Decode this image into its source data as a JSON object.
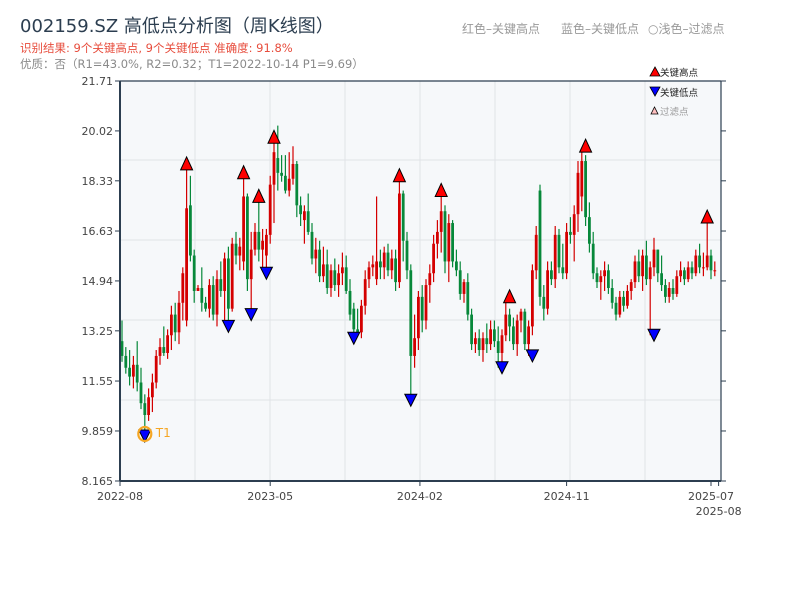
{
  "header": {
    "title": "002159.SZ 高低点分析图（周K线图）",
    "result_line": "识别结果: 9个关键高点, 9个关键低点  准确度: 91.8%",
    "quality_line": "优质：否（R1=43.0%, R2=0.32；T1=2022-10-14 P1=9.69）",
    "color_note_red": "红色–关键高点",
    "color_note_blue": "蓝色–关键低点",
    "color_note_light": "○浅色–过滤点"
  },
  "chart_data": {
    "type": "candlestick",
    "title": "002159.SZ 高低点分析图（周K线图）",
    "xlabel": "",
    "ylabel": "",
    "ylim": [
      8.165,
      21.71
    ],
    "yticks": [
      "21.71",
      "20.02",
      "18.33",
      "16.63",
      "14.94",
      "13.25",
      "11.55",
      "9.859",
      "8.165"
    ],
    "ytick_values": [
      21.71,
      20.02,
      18.33,
      16.63,
      14.94,
      13.25,
      11.55,
      9.859,
      8.165
    ],
    "xticks": [
      {
        "label": "2022-08",
        "week": 0
      },
      {
        "label": "2023-05",
        "week": 39
      },
      {
        "label": "2024-02",
        "week": 78.4
      },
      {
        "label": "2024-11",
        "week": 117
      },
      {
        "label": "2025-07",
        "week": 155
      },
      {
        "label": "2025-08",
        "week": 157
      }
    ],
    "grid": true,
    "legend": {
      "placement": "top-right",
      "items": [
        {
          "label": "关键高点",
          "color": "#ff0000"
        },
        {
          "label": "关键低点",
          "color": "#0000ff"
        },
        {
          "label": "过滤点",
          "color": "#ffc0c0"
        }
      ]
    },
    "up_color": "#d40000",
    "down_color": "#07883a",
    "candles_ohlc": [
      [
        12.9,
        13.6,
        12.2,
        12.4
      ],
      [
        12.4,
        12.7,
        11.8,
        12.0
      ],
      [
        12.0,
        12.6,
        11.4,
        11.7
      ],
      [
        11.7,
        12.4,
        11.3,
        12.1
      ],
      [
        12.1,
        12.9,
        11.2,
        11.5
      ],
      [
        11.5,
        12.0,
        10.6,
        10.8
      ],
      [
        10.8,
        11.1,
        9.69,
        10.4
      ],
      [
        10.4,
        11.3,
        10.2,
        11.0
      ],
      [
        11.0,
        11.8,
        10.5,
        11.5
      ],
      [
        11.5,
        12.6,
        11.3,
        12.4
      ],
      [
        12.4,
        13.0,
        12.1,
        12.7
      ],
      [
        12.7,
        13.4,
        12.4,
        12.5
      ],
      [
        12.5,
        13.3,
        12.3,
        13.1
      ],
      [
        13.1,
        14.1,
        12.6,
        13.8
      ],
      [
        13.8,
        14.2,
        12.9,
        13.2
      ],
      [
        13.2,
        14.6,
        12.8,
        14.2
      ],
      [
        14.2,
        15.4,
        13.6,
        15.2
      ],
      [
        13.6,
        18.7,
        13.4,
        17.4
      ],
      [
        17.5,
        18.5,
        15.6,
        15.8
      ],
      [
        15.8,
        16.0,
        14.2,
        14.6
      ],
      [
        14.6,
        14.8,
        14.6,
        14.7
      ],
      [
        14.7,
        15.4,
        13.9,
        14.2
      ],
      [
        14.2,
        14.4,
        13.9,
        14.0
      ],
      [
        14.0,
        15.0,
        13.7,
        14.8
      ],
      [
        14.8,
        15.1,
        13.6,
        13.8
      ],
      [
        13.8,
        15.3,
        13.4,
        15.0
      ],
      [
        15.0,
        15.6,
        14.4,
        14.6
      ],
      [
        14.6,
        15.9,
        13.6,
        15.7
      ],
      [
        15.7,
        16.1,
        13.4,
        14.0
      ],
      [
        14.0,
        16.4,
        13.9,
        16.2
      ],
      [
        16.2,
        16.6,
        15.5,
        15.8
      ],
      [
        15.8,
        16.4,
        15.3,
        16.1
      ],
      [
        15.6,
        18.4,
        15.3,
        17.8
      ],
      [
        17.8,
        17.9,
        14.6,
        15.0
      ],
      [
        15.0,
        16.6,
        13.8,
        16.0
      ],
      [
        16.0,
        16.9,
        15.8,
        16.6
      ],
      [
        16.6,
        17.6,
        15.6,
        16.0
      ],
      [
        16.0,
        16.7,
        15.4,
        16.3
      ],
      [
        15.8,
        16.7,
        15.2,
        16.5
      ],
      [
        16.5,
        18.5,
        16.2,
        18.2
      ],
      [
        18.2,
        19.6,
        16.9,
        19.3
      ],
      [
        19.1,
        20.2,
        18.0,
        18.6
      ],
      [
        18.6,
        19.2,
        18.3,
        18.5
      ],
      [
        18.5,
        19.2,
        17.9,
        18.0
      ],
      [
        18.0,
        19.3,
        17.8,
        18.4
      ],
      [
        18.4,
        19.5,
        18.2,
        18.9
      ],
      [
        18.9,
        19.0,
        17.1,
        17.5
      ],
      [
        17.5,
        17.8,
        16.8,
        17.2
      ],
      [
        17.0,
        17.5,
        16.2,
        17.3
      ],
      [
        17.3,
        17.9,
        16.5,
        16.6
      ],
      [
        16.6,
        16.9,
        15.5,
        15.7
      ],
      [
        15.7,
        16.4,
        15.2,
        16.0
      ],
      [
        16.0,
        16.3,
        14.9,
        15.1
      ],
      [
        15.1,
        16.1,
        14.9,
        15.5
      ],
      [
        15.5,
        16.0,
        14.5,
        14.7
      ],
      [
        14.7,
        15.5,
        14.4,
        15.3
      ],
      [
        15.3,
        15.7,
        14.6,
        14.8
      ],
      [
        14.8,
        15.5,
        14.4,
        15.2
      ],
      [
        15.2,
        15.9,
        14.8,
        15.4
      ],
      [
        15.4,
        15.8,
        14.5,
        14.6
      ],
      [
        14.6,
        15.0,
        13.6,
        13.8
      ],
      [
        14.0,
        14.2,
        13.0,
        13.3
      ],
      [
        13.3,
        14.0,
        13.1,
        13.2
      ],
      [
        13.2,
        14.3,
        13.0,
        14.1
      ],
      [
        14.1,
        15.3,
        13.8,
        15.0
      ],
      [
        15.0,
        15.6,
        14.7,
        15.4
      ],
      [
        15.4,
        15.8,
        15.1,
        15.5
      ],
      [
        15.0,
        17.8,
        14.8,
        15.6
      ],
      [
        15.6,
        16.0,
        15.0,
        15.4
      ],
      [
        15.4,
        16.1,
        15.0,
        15.9
      ],
      [
        15.9,
        16.2,
        15.1,
        15.3
      ],
      [
        15.3,
        16.0,
        15.0,
        15.7
      ],
      [
        15.7,
        16.0,
        14.6,
        14.9
      ],
      [
        14.9,
        18.3,
        14.7,
        17.9
      ],
      [
        17.9,
        18.0,
        15.6,
        16.3
      ],
      [
        16.3,
        16.6,
        15.0,
        15.3
      ],
      [
        15.3,
        15.5,
        10.9,
        12.4
      ],
      [
        12.4,
        13.8,
        12.0,
        13.0
      ],
      [
        13.0,
        14.6,
        12.6,
        14.4
      ],
      [
        14.4,
        14.8,
        13.2,
        13.6
      ],
      [
        13.6,
        15.0,
        13.3,
        14.8
      ],
      [
        14.8,
        15.5,
        14.2,
        15.2
      ],
      [
        15.2,
        16.5,
        14.9,
        16.2
      ],
      [
        16.2,
        17.0,
        15.7,
        16.6
      ],
      [
        16.6,
        17.8,
        15.9,
        17.3
      ],
      [
        17.3,
        17.5,
        15.2,
        15.6
      ],
      [
        15.6,
        17.2,
        14.9,
        16.9
      ],
      [
        16.9,
        17.0,
        15.4,
        15.6
      ],
      [
        15.6,
        16.0,
        15.1,
        15.3
      ],
      [
        15.3,
        15.6,
        14.3,
        14.5
      ],
      [
        14.5,
        15.0,
        14.2,
        14.9
      ],
      [
        14.9,
        15.2,
        13.6,
        13.8
      ],
      [
        13.8,
        14.0,
        12.6,
        12.8
      ],
      [
        12.8,
        13.2,
        12.5,
        13.0
      ],
      [
        13.0,
        13.3,
        12.4,
        12.6
      ],
      [
        12.6,
        13.2,
        12.2,
        13.0
      ],
      [
        13.0,
        13.5,
        12.5,
        12.8
      ],
      [
        12.8,
        13.6,
        12.6,
        13.3
      ],
      [
        13.3,
        13.6,
        12.7,
        12.9
      ],
      [
        12.9,
        13.4,
        12.0,
        12.5
      ],
      [
        12.5,
        13.3,
        12.2,
        13.1
      ],
      [
        13.1,
        14.2,
        12.9,
        13.8
      ],
      [
        13.8,
        14.0,
        12.9,
        13.4
      ],
      [
        13.4,
        13.7,
        12.6,
        12.8
      ],
      [
        12.8,
        13.8,
        12.4,
        13.6
      ],
      [
        13.6,
        14.0,
        13.2,
        13.9
      ],
      [
        13.9,
        14.0,
        12.6,
        12.8
      ],
      [
        12.8,
        13.6,
        12.4,
        13.4
      ],
      [
        13.4,
        15.5,
        13.1,
        15.3
      ],
      [
        15.3,
        16.8,
        15.0,
        16.5
      ],
      [
        18.0,
        18.2,
        14.1,
        14.4
      ],
      [
        14.4,
        14.8,
        13.6,
        14.0
      ],
      [
        14.0,
        15.6,
        13.8,
        15.3
      ],
      [
        15.3,
        15.6,
        14.8,
        15.0
      ],
      [
        15.0,
        16.8,
        14.7,
        16.5
      ],
      [
        16.5,
        16.7,
        15.2,
        15.4
      ],
      [
        15.4,
        16.2,
        15.0,
        15.2
      ],
      [
        15.2,
        16.9,
        15.0,
        16.6
      ],
      [
        16.6,
        17.1,
        16.2,
        16.5
      ],
      [
        16.5,
        17.5,
        15.6,
        17.2
      ],
      [
        17.2,
        19.0,
        16.6,
        18.6
      ],
      [
        17.8,
        19.3,
        17.3,
        19.0
      ],
      [
        19.0,
        19.2,
        16.8,
        17.1
      ],
      [
        17.1,
        17.6,
        15.9,
        16.2
      ],
      [
        16.2,
        16.6,
        15.0,
        15.2
      ],
      [
        15.2,
        15.4,
        14.7,
        14.9
      ],
      [
        14.9,
        15.3,
        14.3,
        15.1
      ],
      [
        15.1,
        15.6,
        14.6,
        15.3
      ],
      [
        15.3,
        15.5,
        14.5,
        14.7
      ],
      [
        14.7,
        15.0,
        14.0,
        14.2
      ],
      [
        14.2,
        14.4,
        13.6,
        13.8
      ],
      [
        13.8,
        14.6,
        13.7,
        14.4
      ],
      [
        14.4,
        14.6,
        13.9,
        14.1
      ],
      [
        14.1,
        14.8,
        14.0,
        14.6
      ],
      [
        14.6,
        15.0,
        14.3,
        14.9
      ],
      [
        14.9,
        15.8,
        14.7,
        15.6
      ],
      [
        15.6,
        16.0,
        14.9,
        15.1
      ],
      [
        15.1,
        16.0,
        14.6,
        15.8
      ],
      [
        15.8,
        16.3,
        14.8,
        15.0
      ],
      [
        15.0,
        15.6,
        13.1,
        15.4
      ],
      [
        15.4,
        16.4,
        15.1,
        16.0
      ],
      [
        16.0,
        16.0,
        14.9,
        15.2
      ],
      [
        15.2,
        15.8,
        14.6,
        14.8
      ],
      [
        14.8,
        15.0,
        14.2,
        14.4
      ],
      [
        14.4,
        14.9,
        14.2,
        14.7
      ],
      [
        14.7,
        15.0,
        14.3,
        14.5
      ],
      [
        14.5,
        15.3,
        14.4,
        15.1
      ],
      [
        15.1,
        15.6,
        14.9,
        15.3
      ],
      [
        15.3,
        15.4,
        14.8,
        15.0
      ],
      [
        15.0,
        15.6,
        14.9,
        15.4
      ],
      [
        15.4,
        15.6,
        15.0,
        15.2
      ],
      [
        15.2,
        16.0,
        15.1,
        15.8
      ],
      [
        15.8,
        16.2,
        15.2,
        15.4
      ],
      [
        15.4,
        15.9,
        15.1,
        15.4
      ],
      [
        15.4,
        16.9,
        15.3,
        15.8
      ],
      [
        15.8,
        16.0,
        15.0,
        15.3
      ],
      [
        15.3,
        15.6,
        15.1,
        15.3
      ]
    ],
    "key_highs": [
      {
        "week": 17,
        "price": 18.7
      },
      {
        "week": 32,
        "price": 18.4
      },
      {
        "week": 36,
        "price": 17.6
      },
      {
        "week": 40,
        "price": 19.6
      },
      {
        "week": 73,
        "price": 18.3
      },
      {
        "week": 84,
        "price": 17.8
      },
      {
        "week": 102,
        "price": 14.2
      },
      {
        "week": 122,
        "price": 19.3
      },
      {
        "week": 154,
        "price": 16.9
      }
    ],
    "key_lows": [
      {
        "week": 6,
        "price": 9.69
      },
      {
        "week": 28,
        "price": 13.4
      },
      {
        "week": 34,
        "price": 13.8
      },
      {
        "week": 38,
        "price": 15.2
      },
      {
        "week": 61,
        "price": 13.0
      },
      {
        "week": 76,
        "price": 10.9
      },
      {
        "week": 100,
        "price": 12.0
      },
      {
        "week": 108,
        "price": 12.4
      },
      {
        "week": 140,
        "price": 13.1
      }
    ],
    "annotations": [
      {
        "label": "T1",
        "week": 6,
        "price": 9.69,
        "color": "#f5a623"
      }
    ]
  }
}
